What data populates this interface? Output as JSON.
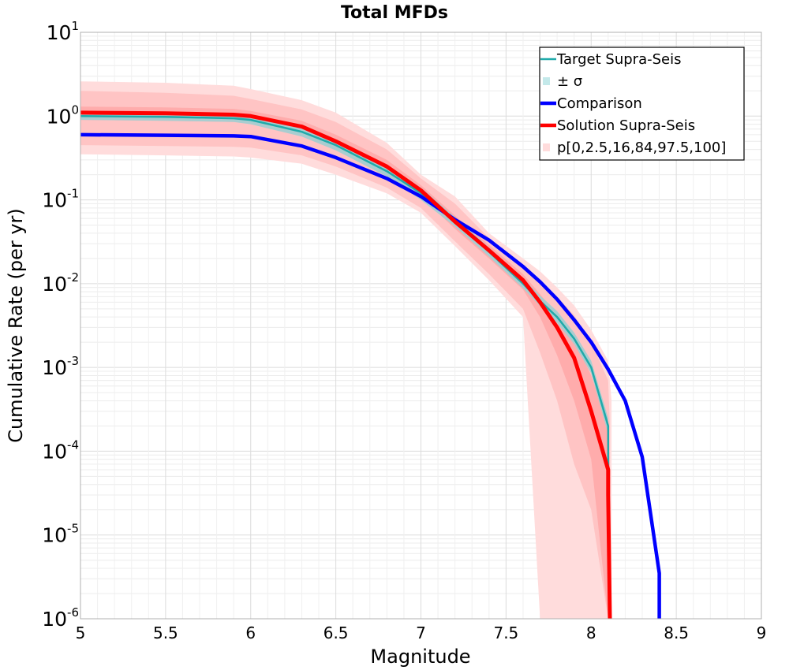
{
  "chart_data": {
    "type": "line",
    "title": "Total MFDs",
    "xlabel": "Magnitude",
    "ylabel": "Cumulative Rate (per yr)",
    "xlim": [
      5,
      9
    ],
    "ylim": [
      1e-06,
      10
    ],
    "yscale": "log",
    "grid": true,
    "legend_position": "top-right",
    "x_ticks": [
      "5",
      "5.5",
      "6",
      "6.5",
      "7",
      "7.5",
      "8",
      "8.5",
      "9"
    ],
    "y_ticks": [
      {
        "base": "10",
        "exp": "1"
      },
      {
        "base": "10",
        "exp": "0"
      },
      {
        "base": "10",
        "exp": "-1"
      },
      {
        "base": "10",
        "exp": "-2"
      },
      {
        "base": "10",
        "exp": "-3"
      },
      {
        "base": "10",
        "exp": "-4"
      },
      {
        "base": "10",
        "exp": "-5"
      },
      {
        "base": "10",
        "exp": "-6"
      }
    ],
    "legend": [
      {
        "label": "Target Supra-Seis",
        "color": "#20aaaa",
        "style": "line"
      },
      {
        "label": "± σ",
        "color": "#c4e9ea",
        "style": "box"
      },
      {
        "label": "Comparison",
        "color": "#0000ff",
        "style": "thickline"
      },
      {
        "label": "Solution Supra-Seis",
        "color": "#ff0000",
        "style": "thickline"
      },
      {
        "label": "p[0,2.5,16,84,97.5,100]",
        "color": "#ffdcdc",
        "style": "box"
      }
    ],
    "series": [
      {
        "name": "Target Supra-Seis",
        "color": "#20aaaa",
        "x": [
          5.0,
          5.5,
          5.9,
          6.0,
          6.3,
          6.5,
          6.8,
          7.0,
          7.2,
          7.4,
          7.6,
          7.7,
          7.8,
          7.9,
          8.0,
          8.1,
          8.1
        ],
        "y": [
          1.0,
          0.98,
          0.94,
          0.9,
          0.65,
          0.45,
          0.22,
          0.12,
          0.055,
          0.024,
          0.01,
          0.0062,
          0.004,
          0.0022,
          0.001,
          0.0002,
          6e-05
        ]
      },
      {
        "name": "Comparison",
        "color": "#0000ff",
        "x": [
          5.0,
          5.5,
          5.9,
          6.0,
          6.3,
          6.5,
          6.8,
          7.0,
          7.2,
          7.4,
          7.6,
          7.7,
          7.8,
          7.9,
          8.0,
          8.1,
          8.2,
          8.3,
          8.4,
          8.4
        ],
        "y": [
          0.6,
          0.59,
          0.58,
          0.57,
          0.44,
          0.32,
          0.18,
          0.11,
          0.058,
          0.033,
          0.016,
          0.0105,
          0.0065,
          0.0037,
          0.002,
          0.00095,
          0.0004,
          8.5e-05,
          3.5e-06,
          1e-06
        ]
      },
      {
        "name": "Solution Supra-Seis",
        "color": "#ff0000",
        "x": [
          5.0,
          5.5,
          5.9,
          6.0,
          6.3,
          6.5,
          6.8,
          7.0,
          7.2,
          7.4,
          7.6,
          7.7,
          7.8,
          7.9,
          8.0,
          8.1,
          8.1,
          8.11
        ],
        "y": [
          1.1,
          1.08,
          1.04,
          1.0,
          0.75,
          0.5,
          0.25,
          0.13,
          0.055,
          0.025,
          0.011,
          0.006,
          0.003,
          0.0013,
          0.0003,
          6e-05,
          3e-05,
          1e-06
        ]
      }
    ],
    "bands": [
      {
        "name": "p 0-100",
        "color": "#ffdcdc",
        "x": [
          5.0,
          5.5,
          5.9,
          6.0,
          6.3,
          6.5,
          6.8,
          7.0,
          7.2,
          7.4,
          7.6,
          7.7,
          7.8,
          7.9,
          8.0,
          8.1,
          8.12
        ],
        "upper": [
          2.6,
          2.5,
          2.3,
          2.1,
          1.55,
          1.1,
          0.48,
          0.2,
          0.11,
          0.04,
          0.02,
          0.014,
          0.009,
          0.0055,
          0.0028,
          0.0012,
          0.0004
        ],
        "lower": [
          0.35,
          0.34,
          0.33,
          0.32,
          0.27,
          0.2,
          0.12,
          0.07,
          0.028,
          0.011,
          0.004,
          1e-06,
          1e-06,
          1e-06,
          1e-06,
          1e-06,
          1e-06
        ]
      },
      {
        "name": "p 2.5-97.5",
        "color": "#ffc4c4",
        "x": [
          5.0,
          5.5,
          5.9,
          6.0,
          6.3,
          6.5,
          6.8,
          7.0,
          7.2,
          7.4,
          7.6,
          7.7,
          7.8,
          7.9,
          8.0,
          8.1,
          8.11
        ],
        "upper": [
          2.0,
          1.9,
          1.75,
          1.6,
          1.2,
          0.85,
          0.4,
          0.18,
          0.09,
          0.035,
          0.016,
          0.011,
          0.007,
          0.0042,
          0.002,
          0.0007,
          0.0002
        ],
        "lower": [
          0.45,
          0.44,
          0.43,
          0.42,
          0.34,
          0.25,
          0.14,
          0.08,
          0.032,
          0.013,
          0.005,
          0.0015,
          0.0004,
          7e-05,
          2e-05,
          1e-06,
          1e-06
        ]
      },
      {
        "name": "p 16-84",
        "color": "#ffacac",
        "x": [
          5.0,
          5.5,
          5.9,
          6.0,
          6.3,
          6.5,
          6.8,
          7.0,
          7.2,
          7.4,
          7.6,
          7.7,
          7.8,
          7.9,
          8.0,
          8.1,
          8.11
        ],
        "upper": [
          1.3,
          1.27,
          1.22,
          1.15,
          0.88,
          0.6,
          0.3,
          0.15,
          0.065,
          0.029,
          0.013,
          0.0075,
          0.0042,
          0.0022,
          0.0008,
          0.0002,
          6e-05
        ],
        "lower": [
          0.9,
          0.88,
          0.85,
          0.82,
          0.62,
          0.4,
          0.2,
          0.11,
          0.045,
          0.02,
          0.0085,
          0.004,
          0.0014,
          0.0004,
          8e-05,
          1e-06,
          1e-06
        ]
      },
      {
        "name": "± σ",
        "color": "#a9cdd0",
        "x": [
          5.0,
          5.5,
          5.9,
          6.0,
          6.3,
          6.5,
          6.8,
          7.0,
          7.2,
          7.4,
          7.6,
          7.7,
          7.8,
          7.9,
          8.0,
          8.1
        ],
        "upper": [
          1.12,
          1.1,
          1.06,
          1.02,
          0.75,
          0.52,
          0.26,
          0.14,
          0.062,
          0.027,
          0.0115,
          0.0072,
          0.0047,
          0.0026,
          0.0012,
          0.00025
        ],
        "lower": [
          0.9,
          0.88,
          0.85,
          0.8,
          0.57,
          0.39,
          0.19,
          0.1,
          0.048,
          0.021,
          0.0088,
          0.0054,
          0.0034,
          0.0019,
          0.00085,
          0.00016
        ]
      }
    ]
  }
}
